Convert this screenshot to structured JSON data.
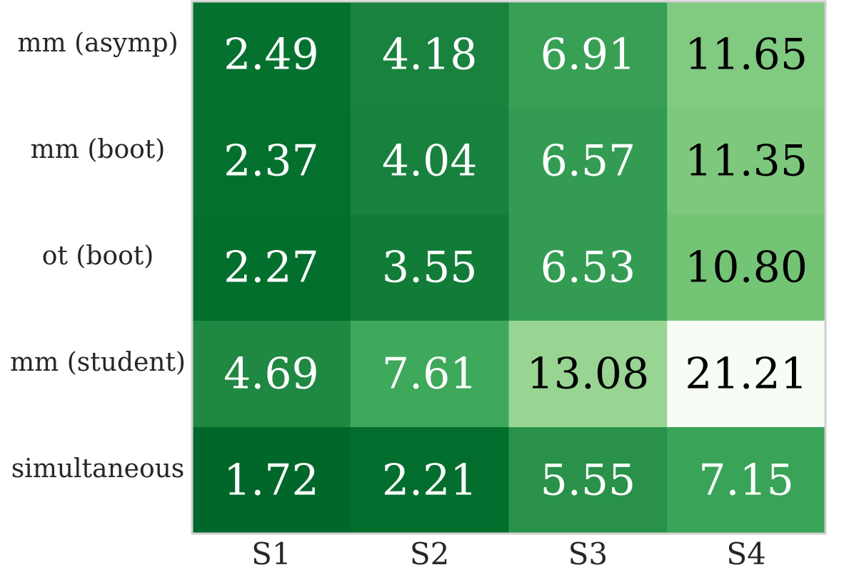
{
  "chart_data": {
    "type": "heatmap",
    "title": "",
    "xlabel": "",
    "ylabel": "",
    "x_categories": [
      "S1",
      "S2",
      "S3",
      "S4"
    ],
    "y_categories": [
      "mm (asymp)",
      "mm (boot)",
      "ot (boot)",
      "mm (student)",
      "simultaneous"
    ],
    "values": [
      [
        2.49,
        4.18,
        6.91,
        11.65
      ],
      [
        2.37,
        4.04,
        6.57,
        11.35
      ],
      [
        2.27,
        3.55,
        6.53,
        10.8
      ],
      [
        4.69,
        7.61,
        13.08,
        21.21
      ],
      [
        1.72,
        2.21,
        5.55,
        7.15
      ]
    ],
    "colormap": "Greens_r",
    "text_colors": {
      "dark_cell": "#ffffff",
      "light_cell": "#000000"
    },
    "grid": false,
    "colorbar": false
  }
}
